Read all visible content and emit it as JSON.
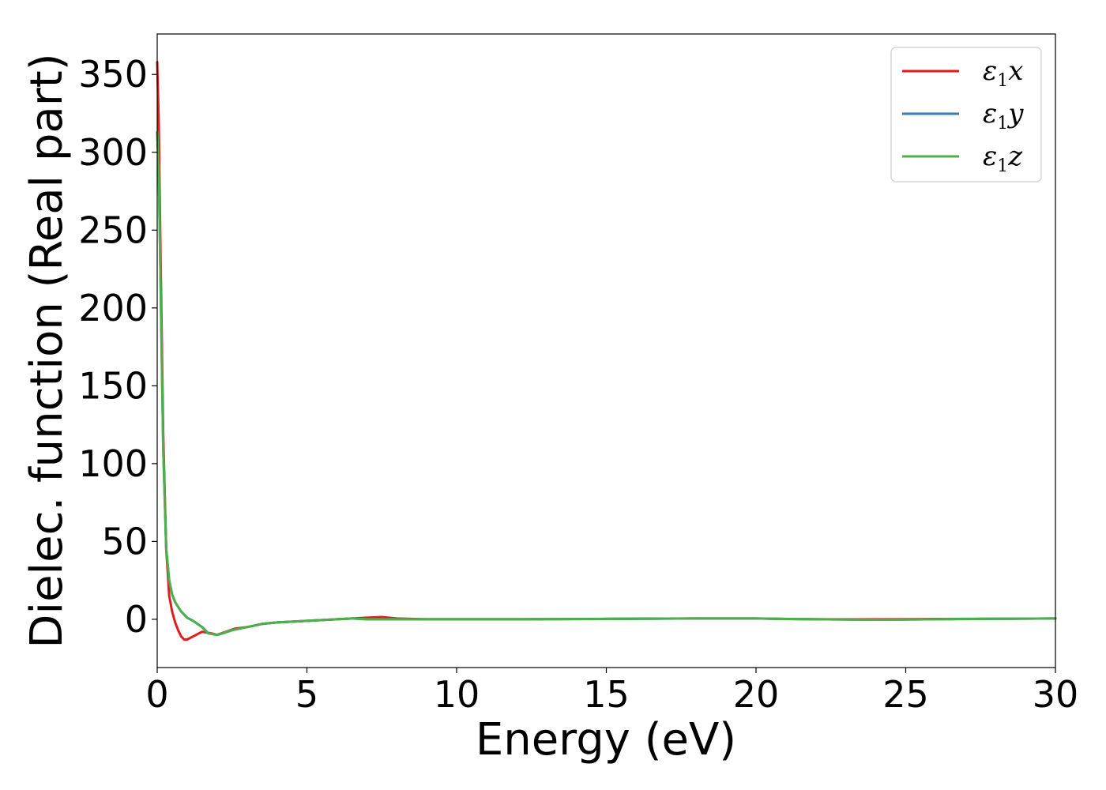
{
  "chart_data": {
    "type": "line",
    "xlabel": "Energy (eV)",
    "ylabel": "Dielec. function (Real part)",
    "xlim": [
      0,
      30
    ],
    "ylim": [
      -31,
      376
    ],
    "xticks": [
      0,
      5,
      10,
      15,
      20,
      25,
      30
    ],
    "xtick_labels": [
      "0",
      "5",
      "10",
      "15",
      "20",
      "25",
      "30"
    ],
    "yticks": [
      0,
      50,
      100,
      150,
      200,
      250,
      300,
      350
    ],
    "ytick_labels": [
      "0",
      "50",
      "100",
      "150",
      "200",
      "250",
      "300",
      "350"
    ],
    "grid": false,
    "legend_position": "top-right",
    "series": [
      {
        "name": "ε1x",
        "legend_base": "ε",
        "legend_sub": "1",
        "legend_var": "x",
        "color": "#e41a1c",
        "x": [
          0.0,
          0.05,
          0.1,
          0.2,
          0.3,
          0.4,
          0.5,
          0.6,
          0.7,
          0.8,
          0.9,
          1.0,
          1.2,
          1.5,
          1.8,
          2.0,
          2.3,
          2.6,
          3.0,
          3.5,
          4.0,
          5.0,
          6.0,
          6.5,
          7.0,
          7.5,
          8.0,
          9.0,
          10.0,
          12.0,
          15.0,
          18.0,
          20.0,
          21.0,
          22.0,
          24.0,
          26.0,
          28.0,
          30.0
        ],
        "y": [
          358,
          320,
          250,
          120,
          45,
          15,
          5,
          -2,
          -7,
          -11,
          -13,
          -13,
          -11,
          -8,
          -9,
          -10,
          -8,
          -6,
          -5,
          -3,
          -2,
          -1,
          0,
          0.5,
          1,
          1.5,
          0.5,
          0,
          0,
          0,
          0.3,
          0.5,
          0.5,
          0.2,
          0,
          0,
          0.2,
          0.3,
          0.5
        ]
      },
      {
        "name": "ε1y",
        "legend_base": "ε",
        "legend_sub": "1",
        "legend_var": "y",
        "color": "#377eb8",
        "x": [
          0.0,
          0.05,
          0.1,
          0.2,
          0.3,
          0.4,
          0.5,
          0.6,
          0.8,
          1.0,
          1.2,
          1.5,
          1.7,
          2.0,
          2.2,
          2.5,
          3.0,
          3.5,
          4.0,
          5.0,
          6.0,
          6.5,
          7.0,
          7.5,
          8.0,
          10.0,
          12.0,
          15.0,
          18.0,
          20.0,
          22.0,
          24.0,
          26.0,
          28.0,
          30.0
        ],
        "y": [
          312,
          290,
          230,
          110,
          45,
          25,
          16,
          11,
          5,
          1,
          -1,
          -5,
          -9,
          -10,
          -9,
          -7,
          -5,
          -3,
          -2,
          -1,
          0,
          0.5,
          0,
          0,
          0,
          0,
          0,
          0.2,
          0.5,
          0.5,
          0,
          -0.3,
          0,
          0.3,
          0.5
        ]
      },
      {
        "name": "ε1z",
        "legend_base": "ε",
        "legend_sub": "1",
        "legend_var": "z",
        "color": "#4daf4a",
        "x": [
          0.0,
          0.05,
          0.1,
          0.2,
          0.3,
          0.4,
          0.5,
          0.6,
          0.8,
          1.0,
          1.2,
          1.5,
          1.7,
          2.0,
          2.2,
          2.5,
          3.0,
          3.5,
          4.0,
          5.0,
          6.0,
          6.5,
          7.0,
          7.5,
          8.0,
          10.0,
          12.0,
          15.0,
          18.0,
          20.0,
          22.0,
          24.0,
          26.0,
          28.0,
          30.0
        ],
        "y": [
          313,
          290,
          230,
          110,
          45,
          25,
          16,
          11,
          5,
          1,
          -1,
          -5,
          -9,
          -10,
          -9,
          -7,
          -5,
          -3,
          -2,
          -1,
          0,
          0.5,
          0,
          0,
          0,
          0,
          0,
          0.2,
          0.5,
          0.5,
          0,
          -0.3,
          0,
          0.3,
          0.5
        ]
      }
    ]
  }
}
